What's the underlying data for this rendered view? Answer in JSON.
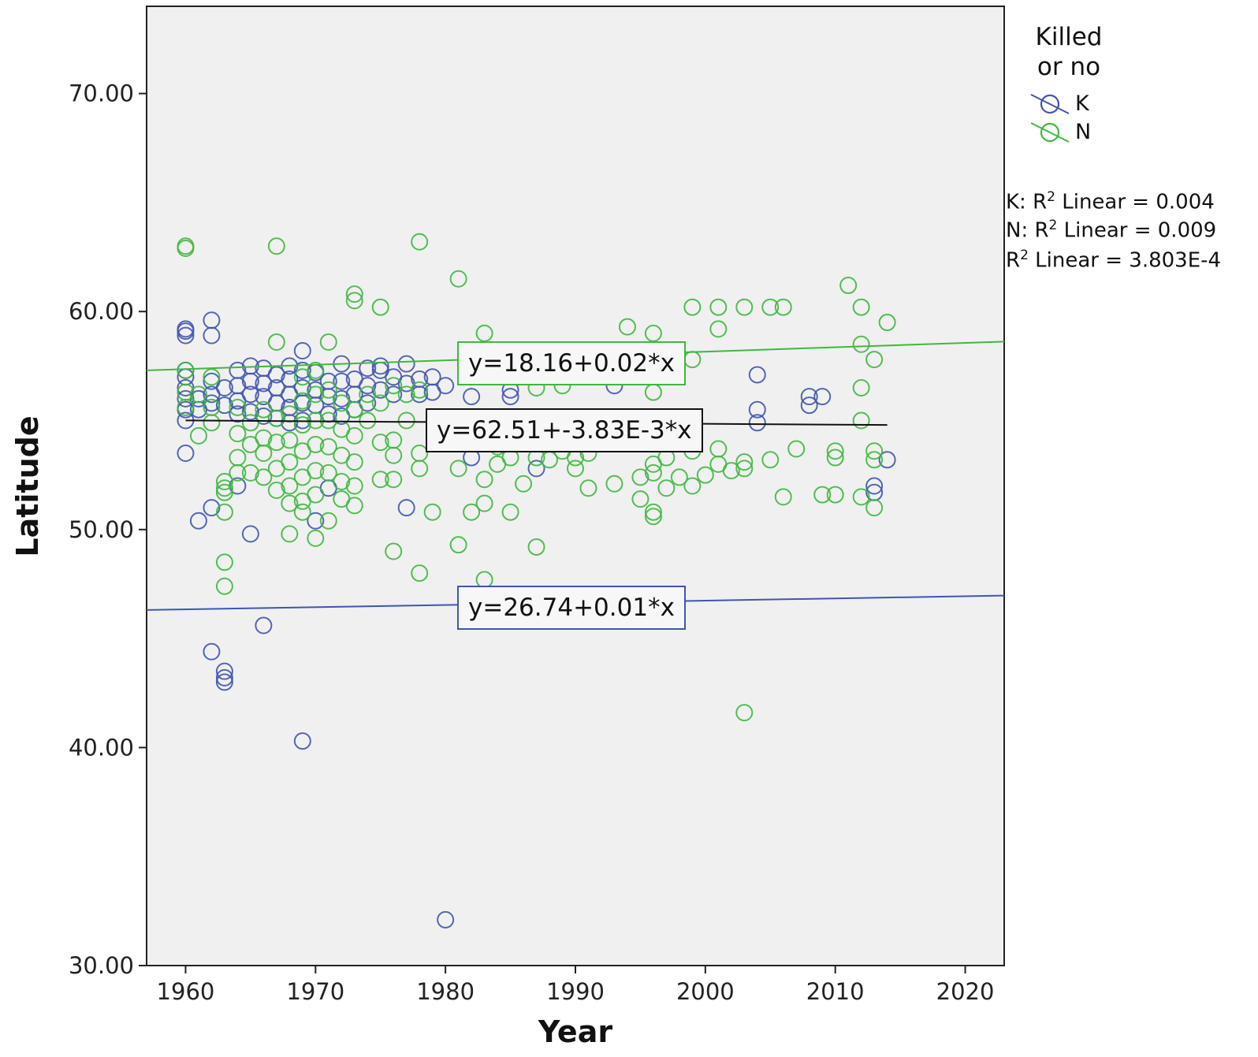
{
  "chart_data": {
    "type": "scatter",
    "xlabel": "Year",
    "ylabel": "Latitude",
    "xlim": [
      1957,
      2023
    ],
    "ylim": [
      30,
      74
    ],
    "xticks": [
      "1960",
      "1970",
      "1980",
      "1990",
      "2000",
      "2010",
      "2020"
    ],
    "xtick_values": [
      1960,
      1970,
      1980,
      1990,
      2000,
      2010,
      2020
    ],
    "yticks": [
      "30.00",
      "40.00",
      "50.00",
      "60.00",
      "70.00"
    ],
    "ytick_values": [
      30,
      40,
      50,
      60,
      70
    ],
    "grid": false,
    "legend": {
      "title_line1": "Killed",
      "title_line2": "or no",
      "placement": "right",
      "entries": [
        "K",
        "N"
      ]
    },
    "colors": {
      "K": "#4055b0",
      "N": "#3fb83f",
      "total": "#111111",
      "plot_bg": "#f0f0f0"
    },
    "r2": {
      "k_prefix": "K: R",
      "k_rest": " Linear = 0.004",
      "n_prefix": "N: R",
      "n_rest": " Linear = 0.009",
      "t_prefix": "R",
      "t_rest": " Linear = 3.803E-4",
      "sup": "2"
    },
    "fit_lines": [
      {
        "series": "K",
        "label": "y=26.74+0.01*x",
        "intercept": 26.74,
        "slope": 0.01,
        "x_range": [
          1957,
          2023
        ]
      },
      {
        "series": "N",
        "label": "y=18.16+0.02*x",
        "intercept": 18.16,
        "slope": 0.02,
        "x_range": [
          1957,
          2023
        ]
      },
      {
        "series": "total",
        "label": "y=62.51+-3.83E-3*x",
        "intercept": 62.51,
        "slope": -0.00383,
        "x_range": [
          1960,
          2014
        ]
      }
    ],
    "series": [
      {
        "name": "K",
        "points": [
          [
            1960,
            59.2
          ],
          [
            1960,
            58.9
          ],
          [
            1960,
            59.1
          ],
          [
            1960,
            57.3
          ],
          [
            1960,
            57.0
          ],
          [
            1960,
            56.5
          ],
          [
            1960,
            56.0
          ],
          [
            1960,
            55.5
          ],
          [
            1960,
            55.0
          ],
          [
            1960,
            53.5
          ],
          [
            1961,
            56.0
          ],
          [
            1961,
            55.5
          ],
          [
            1961,
            50.4
          ],
          [
            1962,
            59.6
          ],
          [
            1962,
            58.9
          ],
          [
            1962,
            56.8
          ],
          [
            1962,
            56.2
          ],
          [
            1962,
            55.8
          ],
          [
            1962,
            51.0
          ],
          [
            1962,
            44.4
          ],
          [
            1963,
            56.5
          ],
          [
            1963,
            55.7
          ],
          [
            1963,
            43.5
          ],
          [
            1963,
            43.2
          ],
          [
            1963,
            43.0
          ],
          [
            1964,
            57.3
          ],
          [
            1964,
            56.6
          ],
          [
            1964,
            55.9
          ],
          [
            1964,
            55.3
          ],
          [
            1964,
            52.0
          ],
          [
            1965,
            57.5
          ],
          [
            1965,
            56.8
          ],
          [
            1965,
            56.2
          ],
          [
            1965,
            55.4
          ],
          [
            1965,
            49.8
          ],
          [
            1966,
            57.4
          ],
          [
            1966,
            56.7
          ],
          [
            1966,
            56.1
          ],
          [
            1966,
            55.2
          ],
          [
            1966,
            45.6
          ],
          [
            1967,
            57.1
          ],
          [
            1967,
            56.5
          ],
          [
            1967,
            55.8
          ],
          [
            1967,
            55.1
          ],
          [
            1968,
            57.5
          ],
          [
            1968,
            56.9
          ],
          [
            1968,
            56.2
          ],
          [
            1968,
            55.6
          ],
          [
            1968,
            54.9
          ],
          [
            1969,
            58.2
          ],
          [
            1969,
            57.3
          ],
          [
            1969,
            56.5
          ],
          [
            1969,
            55.8
          ],
          [
            1969,
            55.0
          ],
          [
            1969,
            40.3
          ],
          [
            1970,
            57.2
          ],
          [
            1970,
            56.4
          ],
          [
            1970,
            55.7
          ],
          [
            1970,
            50.4
          ],
          [
            1971,
            56.8
          ],
          [
            1971,
            56.1
          ],
          [
            1971,
            55.3
          ],
          [
            1971,
            51.9
          ],
          [
            1972,
            57.6
          ],
          [
            1972,
            56.8
          ],
          [
            1972,
            56.0
          ],
          [
            1972,
            55.2
          ],
          [
            1973,
            56.9
          ],
          [
            1973,
            56.2
          ],
          [
            1973,
            55.5
          ],
          [
            1974,
            57.4
          ],
          [
            1974,
            56.6
          ],
          [
            1974,
            55.8
          ],
          [
            1975,
            57.5
          ],
          [
            1975,
            57.3
          ],
          [
            1975,
            56.4
          ],
          [
            1976,
            57.0
          ],
          [
            1976,
            56.2
          ],
          [
            1977,
            57.6
          ],
          [
            1977,
            56.7
          ],
          [
            1977,
            51.0
          ],
          [
            1978,
            56.9
          ],
          [
            1978,
            56.2
          ],
          [
            1979,
            57.0
          ],
          [
            1979,
            56.3
          ],
          [
            1980,
            56.6
          ],
          [
            1980,
            32.1
          ],
          [
            1982,
            56.1
          ],
          [
            1982,
            53.3
          ],
          [
            1985,
            56.4
          ],
          [
            1985,
            56.1
          ],
          [
            1987,
            52.8
          ],
          [
            1993,
            56.6
          ],
          [
            2004,
            57.1
          ],
          [
            2004,
            55.5
          ],
          [
            2004,
            54.9
          ],
          [
            2008,
            56.1
          ],
          [
            2008,
            55.7
          ],
          [
            2009,
            56.1
          ],
          [
            2013,
            52.0
          ],
          [
            2013,
            51.7
          ],
          [
            2014,
            53.2
          ]
        ]
      },
      {
        "name": "N",
        "points": [
          [
            1960,
            62.9
          ],
          [
            1960,
            63.0
          ],
          [
            1960,
            57.3
          ],
          [
            1960,
            56.3
          ],
          [
            1960,
            55.6
          ],
          [
            1961,
            56.2
          ],
          [
            1961,
            54.3
          ],
          [
            1962,
            57.0
          ],
          [
            1962,
            55.6
          ],
          [
            1962,
            54.9
          ],
          [
            1963,
            52.2
          ],
          [
            1963,
            51.9
          ],
          [
            1963,
            51.7
          ],
          [
            1963,
            50.8
          ],
          [
            1963,
            48.5
          ],
          [
            1963,
            47.4
          ],
          [
            1964,
            55.6
          ],
          [
            1964,
            54.4
          ],
          [
            1964,
            53.3
          ],
          [
            1964,
            52.6
          ],
          [
            1965,
            54.9
          ],
          [
            1965,
            53.9
          ],
          [
            1965,
            52.6
          ],
          [
            1966,
            55.5
          ],
          [
            1966,
            54.2
          ],
          [
            1966,
            53.5
          ],
          [
            1966,
            52.4
          ],
          [
            1967,
            63.0
          ],
          [
            1967,
            58.6
          ],
          [
            1967,
            55.1
          ],
          [
            1967,
            54.0
          ],
          [
            1967,
            52.8
          ],
          [
            1967,
            51.8
          ],
          [
            1968,
            55.3
          ],
          [
            1968,
            54.1
          ],
          [
            1968,
            53.1
          ],
          [
            1968,
            52.0
          ],
          [
            1968,
            51.2
          ],
          [
            1968,
            49.8
          ],
          [
            1969,
            57.0
          ],
          [
            1969,
            55.9
          ],
          [
            1969,
            54.8
          ],
          [
            1969,
            53.6
          ],
          [
            1969,
            52.4
          ],
          [
            1969,
            51.3
          ],
          [
            1969,
            50.8
          ],
          [
            1970,
            57.3
          ],
          [
            1970,
            56.2
          ],
          [
            1970,
            55.0
          ],
          [
            1970,
            53.9
          ],
          [
            1970,
            52.7
          ],
          [
            1970,
            51.6
          ],
          [
            1970,
            49.6
          ],
          [
            1971,
            58.6
          ],
          [
            1971,
            56.4
          ],
          [
            1971,
            55.0
          ],
          [
            1971,
            53.8
          ],
          [
            1971,
            52.6
          ],
          [
            1971,
            50.4
          ],
          [
            1972,
            55.8
          ],
          [
            1972,
            54.6
          ],
          [
            1972,
            53.4
          ],
          [
            1972,
            52.2
          ],
          [
            1972,
            51.4
          ],
          [
            1973,
            60.8
          ],
          [
            1973,
            60.5
          ],
          [
            1973,
            55.5
          ],
          [
            1973,
            54.3
          ],
          [
            1973,
            53.1
          ],
          [
            1973,
            52.0
          ],
          [
            1973,
            51.1
          ],
          [
            1974,
            56.2
          ],
          [
            1974,
            55.0
          ],
          [
            1975,
            60.2
          ],
          [
            1975,
            55.8
          ],
          [
            1975,
            54.0
          ],
          [
            1975,
            52.3
          ],
          [
            1976,
            56.6
          ],
          [
            1976,
            54.1
          ],
          [
            1976,
            53.4
          ],
          [
            1976,
            52.3
          ],
          [
            1976,
            49.0
          ],
          [
            1977,
            56.2
          ],
          [
            1977,
            55.0
          ],
          [
            1978,
            63.2
          ],
          [
            1978,
            56.4
          ],
          [
            1978,
            53.5
          ],
          [
            1978,
            52.8
          ],
          [
            1978,
            48.0
          ],
          [
            1979,
            50.8
          ],
          [
            1981,
            61.5
          ],
          [
            1981,
            52.8
          ],
          [
            1981,
            49.3
          ],
          [
            1982,
            50.8
          ],
          [
            1983,
            59.0
          ],
          [
            1983,
            52.3
          ],
          [
            1983,
            51.2
          ],
          [
            1983,
            47.7
          ],
          [
            1984,
            53.8
          ],
          [
            1984,
            53.0
          ],
          [
            1985,
            53.3
          ],
          [
            1985,
            50.8
          ],
          [
            1986,
            54.3
          ],
          [
            1986,
            52.1
          ],
          [
            1987,
            56.5
          ],
          [
            1987,
            53.3
          ],
          [
            1987,
            49.2
          ],
          [
            1988,
            54.0
          ],
          [
            1988,
            53.2
          ],
          [
            1989,
            56.6
          ],
          [
            1989,
            53.6
          ],
          [
            1990,
            53.3
          ],
          [
            1990,
            52.8
          ],
          [
            1991,
            53.5
          ],
          [
            1991,
            51.9
          ],
          [
            1993,
            52.1
          ],
          [
            1994,
            59.3
          ],
          [
            1995,
            52.4
          ],
          [
            1995,
            51.4
          ],
          [
            1996,
            59.0
          ],
          [
            1996,
            56.3
          ],
          [
            1996,
            53.0
          ],
          [
            1996,
            52.6
          ],
          [
            1996,
            50.8
          ],
          [
            1996,
            50.6
          ],
          [
            1997,
            53.3
          ],
          [
            1997,
            51.9
          ],
          [
            1998,
            52.4
          ],
          [
            1999,
            60.2
          ],
          [
            1999,
            57.8
          ],
          [
            1999,
            53.6
          ],
          [
            1999,
            52.0
          ],
          [
            2000,
            52.5
          ],
          [
            2001,
            60.2
          ],
          [
            2001,
            59.2
          ],
          [
            2001,
            53.7
          ],
          [
            2001,
            53.0
          ],
          [
            2002,
            52.7
          ],
          [
            2003,
            60.2
          ],
          [
            2003,
            53.1
          ],
          [
            2003,
            52.8
          ],
          [
            2003,
            41.6
          ],
          [
            2005,
            60.2
          ],
          [
            2005,
            53.2
          ],
          [
            2006,
            60.2
          ],
          [
            2006,
            51.5
          ],
          [
            2007,
            53.7
          ],
          [
            2009,
            51.6
          ],
          [
            2010,
            53.6
          ],
          [
            2010,
            53.3
          ],
          [
            2010,
            51.6
          ],
          [
            2011,
            61.2
          ],
          [
            2012,
            60.2
          ],
          [
            2012,
            58.5
          ],
          [
            2012,
            56.5
          ],
          [
            2012,
            55.0
          ],
          [
            2012,
            51.5
          ],
          [
            2013,
            57.8
          ],
          [
            2013,
            53.6
          ],
          [
            2013,
            53.2
          ],
          [
            2013,
            51.0
          ],
          [
            2014,
            59.5
          ]
        ]
      }
    ]
  }
}
